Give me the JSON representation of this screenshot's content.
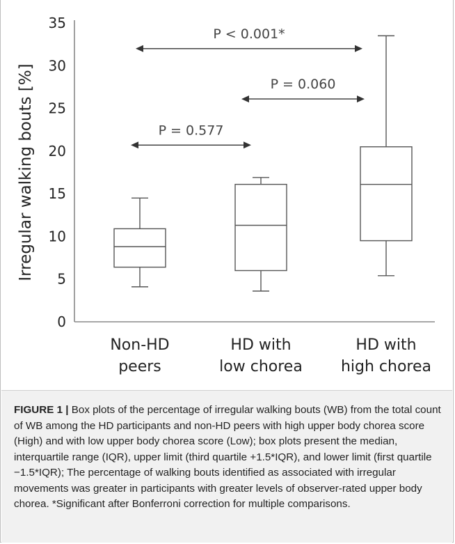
{
  "chart_data": {
    "type": "box",
    "ylabel": "Irregular walking bouts [%]",
    "ylim": [
      0,
      35
    ],
    "yticks": [
      "0",
      "5",
      "10",
      "15",
      "20",
      "25",
      "30",
      "35"
    ],
    "grid": false,
    "categories": [
      [
        "Non-HD",
        "peers"
      ],
      [
        "HD with",
        "low chorea"
      ],
      [
        "HD with",
        "high chorea"
      ]
    ],
    "boxes": [
      {
        "whisker_low": 4.1,
        "q1": 6.4,
        "median": 8.8,
        "q3": 10.9,
        "whisker_high": 14.5
      },
      {
        "whisker_low": 3.6,
        "q1": 6.0,
        "median": 11.3,
        "q3": 16.1,
        "whisker_high": 16.9
      },
      {
        "whisker_low": 5.4,
        "q1": 9.5,
        "median": 16.1,
        "q3": 20.5,
        "whisker_high": 33.5
      }
    ],
    "comparisons": [
      {
        "from": 0,
        "to": 1,
        "y": 20.7,
        "label": "P = 0.577"
      },
      {
        "from": 1,
        "to": 2,
        "y": 26.1,
        "label": "P = 0.060"
      },
      {
        "from": 0,
        "to": 2,
        "y": 32.0,
        "label": "P < 0.001*"
      }
    ],
    "colors": {
      "box_stroke": "#555555",
      "axis": "#888888",
      "text": "#222222"
    }
  },
  "caption": {
    "label": "FIGURE 1 |",
    "text": "Box plots of the percentage of irregular walking bouts (WB) from the total count of WB among the HD participants and non-HD peers with high upper body chorea score (High) and with low upper body chorea score (Low); box plots present the median, interquartile range (IQR), upper limit (third quartile +1.5*IQR), and lower limit (first quartile −1.5*IQR); The percentage of walking bouts identified as associated with irregular movements was greater in participants with greater levels of observer-rated upper body chorea. *Significant after Bonferroni correction for multiple comparisons."
  }
}
